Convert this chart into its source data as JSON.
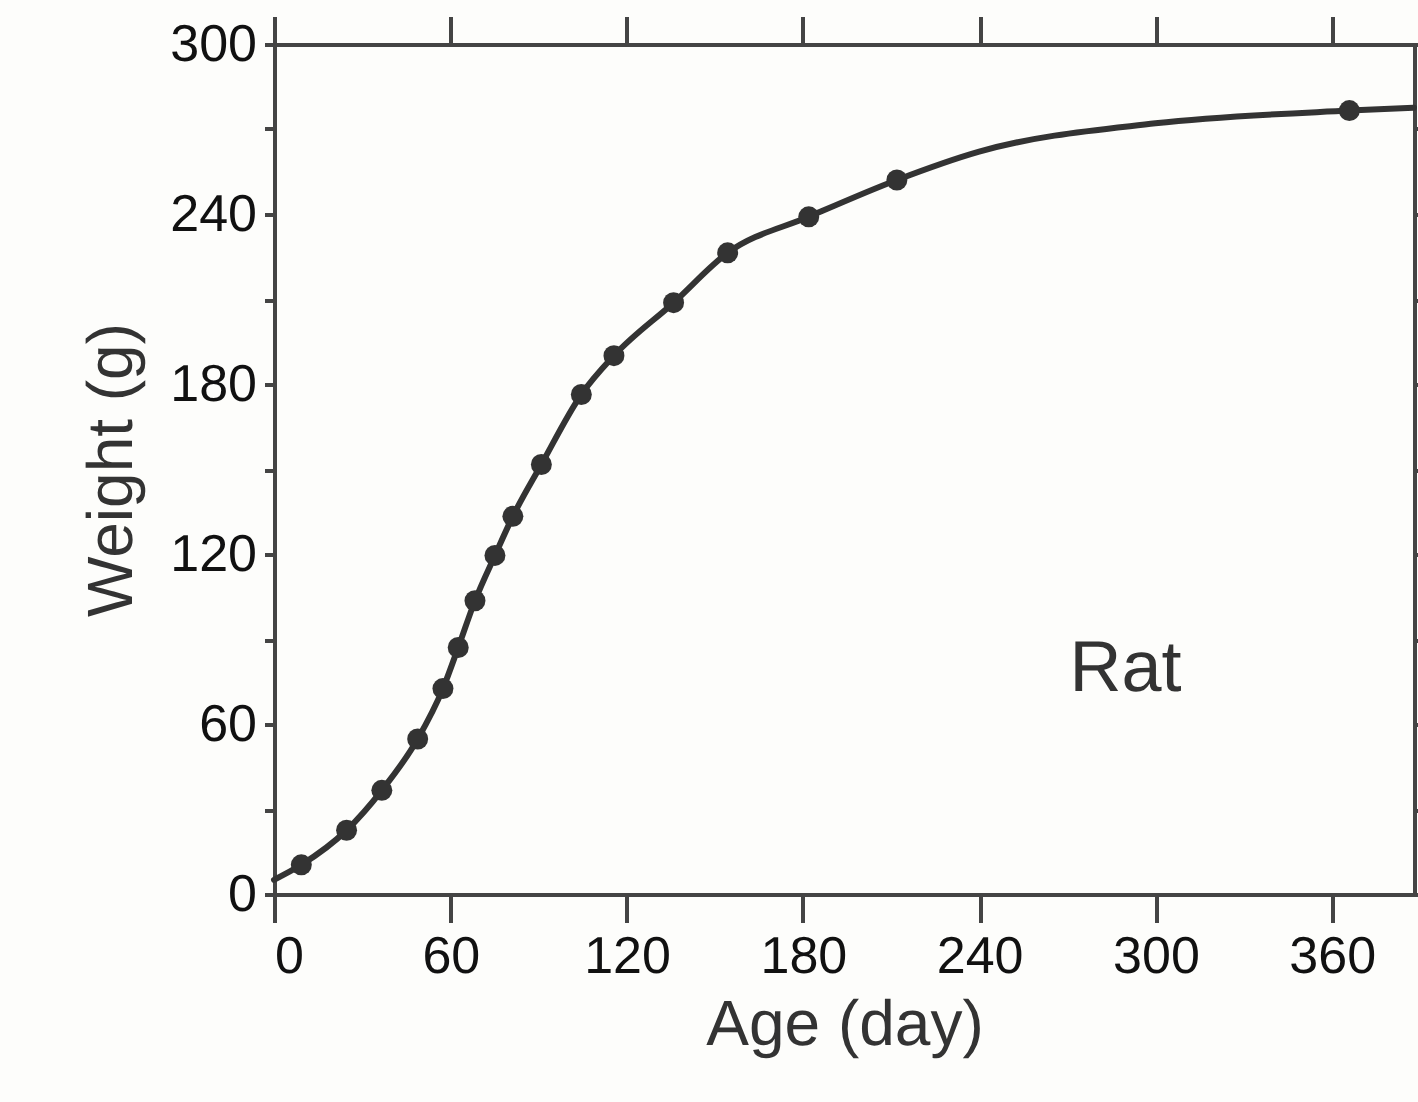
{
  "chart_data": {
    "type": "scatter",
    "xlabel": "Age (day)",
    "ylabel": "Weight (g)",
    "xlim": [
      0,
      388
    ],
    "ylim": [
      0,
      300
    ],
    "xticks": [
      0,
      60,
      120,
      180,
      240,
      300,
      360
    ],
    "yticks": [
      0,
      {
        "value": 30,
        "label": null
      },
      60,
      {
        "value": 90,
        "label": null
      },
      120,
      {
        "value": 150,
        "label": null
      },
      180,
      {
        "value": 210,
        "label": null
      },
      240,
      {
        "value": 270,
        "label": null
      },
      300
    ],
    "grid": false,
    "annotations": [
      "Rat"
    ],
    "series": [
      {
        "type": "line",
        "color": "#333333",
        "marker": "none",
        "line_style": "solid",
        "x": [
          0,
          9.3,
          24.7,
          36.7,
          48.9,
          57.5,
          62.7,
          68.4,
          75.2,
          81.3,
          91,
          104.6,
          115.7,
          136,
          154.4,
          182,
          212,
          240,
          300,
          366,
          388
        ],
        "values": [
          5,
          10.3,
          22.5,
          36.6,
          54.7,
          72.5,
          87,
          103.5,
          119.5,
          133.3,
          151.6,
          176.3,
          190,
          208.7,
          226.3,
          239,
          252,
          262,
          272,
          276.5,
          277.5
        ]
      },
      {
        "color": "#333333",
        "marker": "circle",
        "x": [
          9.3,
          24.7,
          36.7,
          48.9,
          57.5,
          62.7,
          68.4,
          75.2,
          81.3,
          91,
          104.6,
          115.7,
          136,
          154.4,
          182,
          212,
          366
        ],
        "values": [
          10.3,
          22.5,
          36.6,
          54.7,
          72.5,
          87,
          103.5,
          119.5,
          133.3,
          151.6,
          176.3,
          190,
          208.7,
          226.3,
          239,
          252,
          276.5
        ]
      }
    ]
  }
}
